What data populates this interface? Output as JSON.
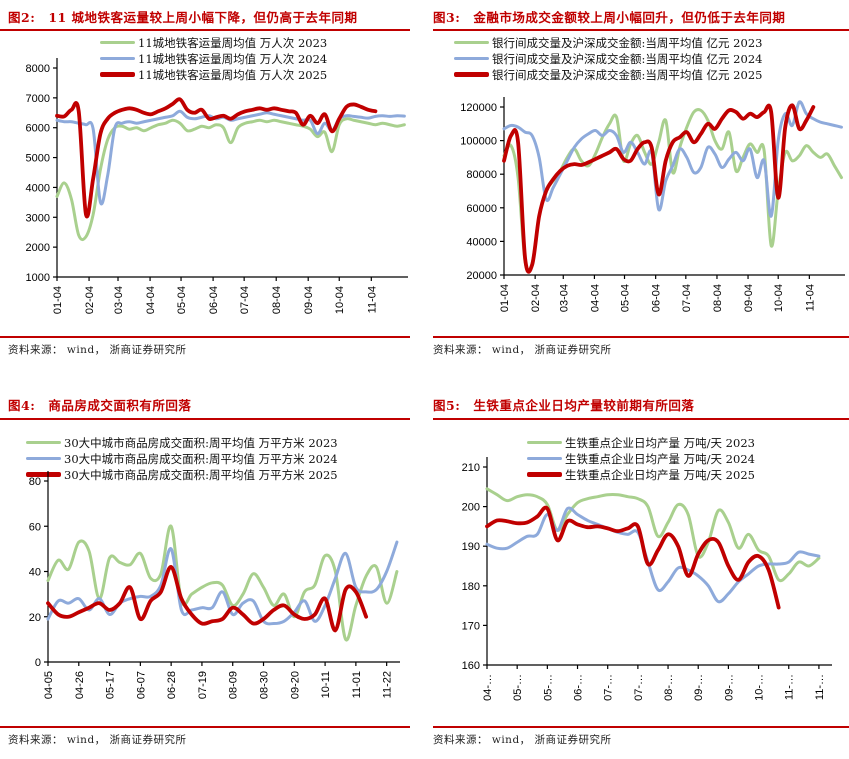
{
  "page": {
    "background": "#ffffff"
  },
  "colors": {
    "title_red": "#c00000",
    "rule_red": "#c00000",
    "series_2023_green": "#a9d08e",
    "series_2024_blue": "#8eaadb",
    "series_2025_red": "#c00000",
    "axis_black": "#000000",
    "source_text": "#222222"
  },
  "chart_data": [
    {
      "type": "line",
      "figure_label": "图2:",
      "title": "11 城地铁客运量较上周小幅下降，但仍高于去年同期",
      "source": "资料来源： wind， 浙商证券研究所",
      "ylim": [
        1000,
        8000
      ],
      "yticks": [
        1000,
        2000,
        3000,
        4000,
        5000,
        6000,
        7000,
        8000
      ],
      "grid": false,
      "legend_position": "top",
      "x_axis_span_weeks": 48.5,
      "x_tick_labels": [
        "01-04",
        "02-04",
        "03-04",
        "04-04",
        "05-04",
        "06-04",
        "07-04",
        "08-04",
        "09-04",
        "10-04",
        "11-04"
      ],
      "x_tick_positions": [
        0,
        4.43,
        8.43,
        12.86,
        17.14,
        21.57,
        25.86,
        30.29,
        34.71,
        39.0,
        43.43
      ],
      "series": [
        {
          "name": "2023",
          "label": "11城地铁客运量周均值 万人次 2023",
          "color": "#a9d08e",
          "start_week": 0,
          "values": [
            3700,
            4150,
            3600,
            2400,
            2350,
            3100,
            4600,
            5600,
            6000,
            6050,
            5950,
            6000,
            5900,
            6000,
            6100,
            6150,
            6250,
            6150,
            5900,
            5950,
            6050,
            6000,
            6100,
            6000,
            5500,
            6000,
            6150,
            6200,
            6250,
            6200,
            6250,
            6200,
            6150,
            6100,
            6050,
            5950,
            5700,
            5850,
            5200,
            6100,
            6300,
            6250,
            6200,
            6150,
            6100,
            6150,
            6100,
            6050,
            6100
          ]
        },
        {
          "name": "2024",
          "label": "11城地铁客运量周均值 万人次 2024",
          "color": "#8eaadb",
          "start_week": 0,
          "values": [
            6250,
            6200,
            6200,
            6150,
            6100,
            5950,
            3500,
            4400,
            6000,
            6150,
            6200,
            6150,
            6200,
            6250,
            6300,
            6350,
            6400,
            6550,
            6350,
            6300,
            6350,
            6400,
            6300,
            6350,
            6250,
            6300,
            6350,
            6400,
            6450,
            6500,
            6450,
            6400,
            6350,
            6300,
            6250,
            6250,
            5800,
            6150,
            5900,
            6300,
            6400,
            6380,
            6350,
            6320,
            6380,
            6400,
            6380,
            6400,
            6390
          ]
        },
        {
          "name": "2025",
          "label": "11城地铁客运量周均值 万人次 2025",
          "color": "#c00000",
          "start_week": 0,
          "values": [
            6400,
            6380,
            6600,
            6550,
            3100,
            4300,
            5800,
            6300,
            6500,
            6600,
            6650,
            6600,
            6500,
            6450,
            6550,
            6650,
            6800,
            6950,
            6600,
            6500,
            6600,
            6300,
            6350,
            6400,
            6300,
            6450,
            6550,
            6600,
            6650,
            6600,
            6650,
            6600,
            6550,
            6500,
            6100,
            6400,
            6150,
            6450,
            5880,
            6300,
            6700,
            6780,
            6700,
            6600,
            6550
          ]
        }
      ]
    },
    {
      "type": "line",
      "figure_label": "图3:",
      "title": "金融市场成交金额较上周小幅回升，但仍低于去年同期",
      "source": "资料来源： wind， 浙商证券研究所",
      "ylim": [
        20000,
        120000
      ],
      "yticks": [
        20000,
        40000,
        60000,
        80000,
        100000,
        120000
      ],
      "grid": false,
      "legend_position": "top",
      "x_axis_span_weeks": 48.5,
      "x_tick_labels": [
        "01-04",
        "02-04",
        "03-04",
        "04-04",
        "05-04",
        "06-04",
        "07-04",
        "08-04",
        "09-04",
        "10-04",
        "11-04"
      ],
      "x_tick_positions": [
        0,
        4.43,
        8.43,
        12.86,
        17.14,
        21.57,
        25.86,
        30.29,
        34.71,
        39.0,
        43.43
      ],
      "series": [
        {
          "name": "2023",
          "label": "银行间成交量及沪深成交金额:当周平均值 亿元 2023",
          "color": "#a9d08e",
          "start_week": 0,
          "values": [
            91000,
            97000,
            78000,
            28000,
            27000,
            55000,
            70000,
            76000,
            82000,
            90000,
            95000,
            88000,
            85000,
            92000,
            102000,
            110000,
            114000,
            88000,
            98000,
            103000,
            93000,
            86000,
            99000,
            112000,
            81000,
            96000,
            108000,
            117000,
            118000,
            112000,
            100000,
            95000,
            105000,
            82000,
            90000,
            98000,
            93000,
            94000,
            37500,
            70000,
            93000,
            88000,
            91000,
            97000,
            93000,
            90000,
            92000,
            85000,
            78000
          ]
        },
        {
          "name": "2024",
          "label": "银行间成交量及沪深成交金额:当周平均值 亿元 2024",
          "color": "#8eaadb",
          "start_week": 0,
          "values": [
            107000,
            109000,
            108000,
            105000,
            103000,
            90000,
            65000,
            72000,
            80000,
            88000,
            96000,
            101000,
            104000,
            106000,
            103000,
            106000,
            103000,
            93000,
            99000,
            93000,
            86000,
            93000,
            59000,
            76000,
            85000,
            95000,
            90000,
            81000,
            84000,
            96000,
            92000,
            84000,
            89000,
            93000,
            88000,
            95000,
            78000,
            88000,
            55000,
            100000,
            116000,
            109000,
            123000,
            116000,
            113000,
            111000,
            110000,
            109000,
            108000
          ]
        },
        {
          "name": "2025",
          "label": "银行间成交量及沪深成交金额:当周平均值 亿元 2025",
          "color": "#c00000",
          "start_week": 0,
          "values": [
            88000,
            103000,
            99000,
            30000,
            26000,
            55000,
            70000,
            77000,
            82000,
            85000,
            86000,
            85500,
            87000,
            89000,
            91000,
            93000,
            95000,
            89000,
            88000,
            95000,
            99000,
            96000,
            68000,
            88000,
            99000,
            102000,
            105000,
            99000,
            104000,
            110000,
            107000,
            113000,
            118000,
            117000,
            113000,
            116000,
            114000,
            117000,
            117000,
            66000,
            108000,
            121000,
            107000,
            112000,
            120000
          ]
        }
      ]
    },
    {
      "type": "line",
      "figure_label": "图4:",
      "title": "商品房成交面积有所回落",
      "source": "资料来源： wind， 浙商证券研究所",
      "ylim": [
        0,
        80
      ],
      "yticks": [
        0,
        20,
        40,
        60,
        80
      ],
      "grid": false,
      "legend_position": "top",
      "x_axis_span_weeks": 34.3,
      "x_tick_labels": [
        "04-05",
        "04-26",
        "05-17",
        "06-07",
        "06-28",
        "07-19",
        "08-09",
        "08-30",
        "09-20",
        "10-11",
        "11-01",
        "11-22"
      ],
      "x_tick_positions": [
        0,
        3,
        6,
        9,
        12,
        15,
        18,
        21,
        24,
        27,
        30,
        33
      ],
      "series": [
        {
          "name": "2023",
          "label": "30大中城市商品房成交面积:周平均值 万平方米 2023",
          "color": "#a9d08e",
          "start_week": 0,
          "values": [
            36,
            45,
            41,
            53,
            49,
            28,
            46,
            44,
            43,
            48,
            37,
            39,
            60,
            27,
            30,
            33,
            35,
            34,
            25,
            30,
            39,
            33,
            25,
            30,
            20,
            31,
            34,
            47,
            40,
            10,
            25,
            38,
            42,
            26,
            40
          ]
        },
        {
          "name": "2024",
          "label": "30大中城市商品房成交面积:周平均值 万平方米 2024",
          "color": "#8eaadb",
          "start_week": 0,
          "values": [
            19,
            27,
            26,
            28,
            23,
            28,
            21,
            26,
            28,
            29,
            29,
            34,
            50,
            23,
            23,
            24,
            24,
            31,
            21,
            26,
            27,
            18,
            17,
            18,
            22,
            27,
            18,
            25,
            37,
            48,
            33,
            31,
            32,
            40,
            53
          ]
        },
        {
          "name": "2025",
          "label": "30大中城市商品房成交面积:周平均值 万平方米 2025",
          "color": "#c00000",
          "start_week": 0,
          "values": [
            26,
            21,
            20,
            22,
            24,
            26,
            23,
            26,
            33,
            19,
            27,
            31,
            42,
            28,
            21,
            17,
            18,
            19,
            24,
            21,
            17,
            19,
            23,
            25,
            21,
            19,
            21,
            28,
            14,
            32,
            31,
            20
          ]
        }
      ]
    },
    {
      "type": "line",
      "figure_label": "图5:",
      "title": "生铁重点企业日均产量较前期有所回落",
      "source": "资料来源： wind， 浙商证券研究所",
      "ylim": [
        160,
        210
      ],
      "yticks": [
        160,
        170,
        180,
        190,
        200,
        210
      ],
      "grid": false,
      "legend_position": "top",
      "x_axis_span_weeks": 34.3,
      "x_tick_labels": [
        "04-…",
        "05-…",
        "05-…",
        "06-…",
        "07-…",
        "07-…",
        "08-…",
        "09-…",
        "09-…",
        "10-…",
        "11-…",
        "11-…"
      ],
      "x_tick_positions": [
        0,
        3,
        6,
        9,
        12,
        15,
        18,
        21,
        24,
        27,
        30,
        33
      ],
      "series": [
        {
          "name": "2023",
          "label": "生铁重点企业日均产量 万吨/天 2023",
          "color": "#a9d08e",
          "start_week": 0,
          "values": [
            204.5,
            203,
            201.5,
            202.5,
            203,
            202.5,
            200.5,
            194,
            198,
            201,
            202,
            202.5,
            203,
            203,
            202.5,
            202,
            200,
            192.5,
            196,
            200.5,
            198,
            187.5,
            191,
            199,
            196,
            189.5,
            193,
            189,
            187.5,
            181.5,
            183,
            186,
            185,
            187
          ]
        },
        {
          "name": "2024",
          "label": "生铁重点企业日均产量 万吨/天 2024",
          "color": "#8eaadb",
          "start_week": 0,
          "values": [
            190.5,
            189.5,
            189.5,
            191,
            192.5,
            193,
            198,
            194,
            199.5,
            198,
            196.5,
            195.5,
            194.5,
            193.5,
            193,
            193.5,
            186,
            179,
            181,
            184.5,
            184,
            182.5,
            180,
            176,
            178,
            181,
            183,
            185,
            185.5,
            185.5,
            186,
            188.5,
            188,
            187.5
          ]
        },
        {
          "name": "2025",
          "label": "生铁重点企业日均产量 万吨/天 2025",
          "color": "#c00000",
          "start_week": 0,
          "values": [
            195,
            196.5,
            196.3,
            195.8,
            196,
            197.5,
            199.5,
            191.5,
            196.3,
            195.5,
            194.8,
            195,
            194.5,
            193.8,
            194.5,
            195,
            185.5,
            189,
            193,
            190,
            182.5,
            188,
            191.5,
            191,
            185,
            181.5,
            186,
            187.5,
            184,
            174.5
          ]
        }
      ]
    }
  ]
}
